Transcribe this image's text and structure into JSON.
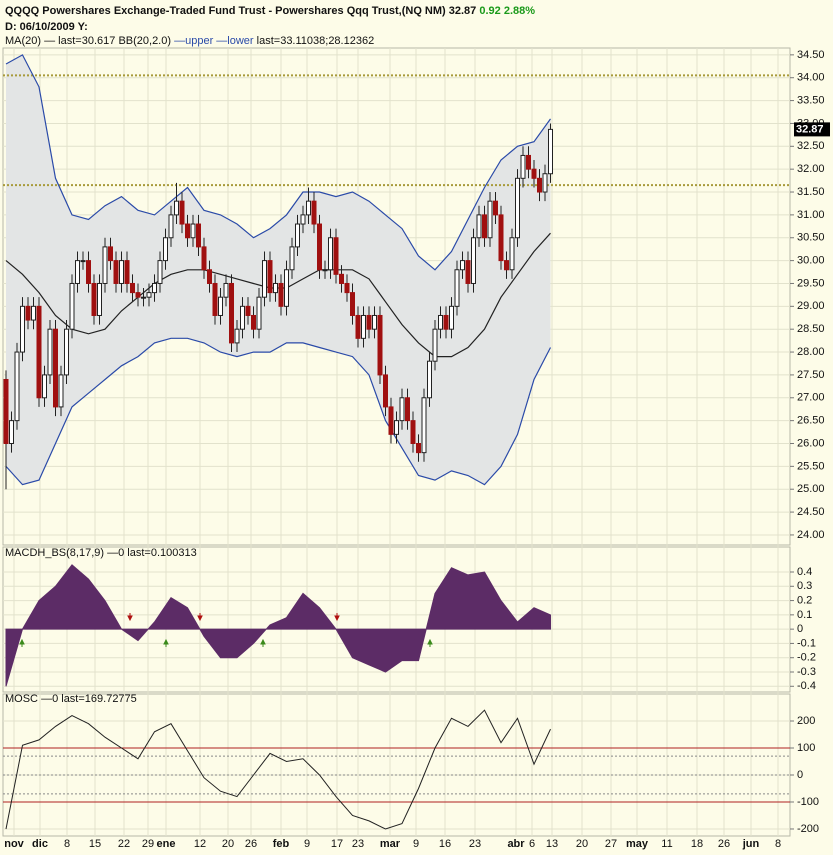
{
  "header": {
    "title": "QQQQ Powershares Exchange-Traded Fund Trust - Powershares Qqq Trust,(NQ NM)",
    "last": "32.87",
    "change": "0.92",
    "change_pct": "2.88%",
    "date_line": "D: 06/10/2009 Y:"
  },
  "x_axis": {
    "labels": [
      "nov",
      "dic",
      "8",
      "15",
      "22",
      "29",
      "ene",
      "12",
      "20",
      "26",
      "feb",
      "9",
      "17",
      "23",
      "mar",
      "9",
      "16",
      "23",
      "abr",
      "6",
      "13",
      "20",
      "27",
      "may",
      "11",
      "18",
      "26",
      "jun",
      "8"
    ]
  },
  "chart_data": [
    {
      "type": "candlestick",
      "legend": [
        "MA(20)",
        "— last=30.617",
        "BB(20,2.0)",
        "—upper",
        "—lower",
        "last=33.11038;28.12362"
      ],
      "ylim": [
        23.78,
        34.65
      ],
      "yticks": [
        {
          "value": 24,
          "label": "24.00"
        },
        {
          "value": 24.5,
          "label": "24.50"
        },
        {
          "value": 25,
          "label": "25.00"
        },
        {
          "value": 25.5,
          "label": "25.50"
        },
        {
          "value": 26,
          "label": "26.00"
        },
        {
          "value": 26.5,
          "label": "26.50"
        },
        {
          "value": 27,
          "label": "27.00"
        },
        {
          "value": 27.5,
          "label": "27.50"
        },
        {
          "value": 28,
          "label": "28.00"
        },
        {
          "value": 28.5,
          "label": "28.50"
        },
        {
          "value": 29,
          "label": "29.00"
        },
        {
          "value": 29.5,
          "label": "29.50"
        },
        {
          "value": 30,
          "label": "30.00"
        },
        {
          "value": 30.5,
          "label": "30.50"
        },
        {
          "value": 31,
          "label": "31.00"
        },
        {
          "value": 31.5,
          "label": "31.50"
        },
        {
          "value": 32,
          "label": "32.00"
        },
        {
          "value": 32.5,
          "label": "32.50"
        },
        {
          "value": 33,
          "label": "33.00"
        },
        {
          "value": 33.5,
          "label": "33.50"
        },
        {
          "value": 34,
          "label": "34.00"
        },
        {
          "value": 34.5,
          "label": "34.50"
        }
      ],
      "up_color": "#ffffff",
      "down_color": "#a01010",
      "open": [
        27.4,
        26.0,
        26.5,
        28.0,
        29.0,
        28.7,
        29.0,
        27.0,
        27.5,
        28.5,
        26.8,
        27.5,
        28.5,
        29.5,
        30.0,
        30.0,
        29.5,
        28.8,
        29.5,
        30.3,
        30.0,
        29.5,
        30.0,
        29.5,
        29.3,
        29.2,
        29.2,
        29.3,
        29.5,
        30.0,
        30.5,
        31.0,
        31.3,
        30.8,
        30.5,
        30.8,
        30.3,
        29.8,
        29.5,
        28.8,
        29.2,
        29.5,
        28.2,
        28.5,
        29.0,
        28.8,
        28.5,
        29.2,
        30.0,
        29.3,
        29.5,
        29.0,
        29.8,
        30.3,
        30.8,
        31.0,
        31.3,
        30.8,
        29.8,
        29.8,
        30.5,
        29.7,
        29.5,
        29.3,
        28.8,
        28.3,
        28.8,
        28.5,
        28.8,
        27.5,
        26.8,
        26.2,
        26.5,
        27.0,
        26.5,
        26.0,
        25.8,
        27.0,
        27.8,
        28.5,
        28.8,
        28.5,
        29.0,
        29.8,
        30.0,
        29.5,
        30.5,
        31.0,
        30.5,
        31.3,
        31.0,
        30.0,
        29.8,
        30.5,
        31.8,
        32.3,
        32.0,
        31.8,
        31.5,
        31.9
      ],
      "high": [
        27.6,
        26.7,
        28.2,
        29.2,
        29.2,
        29.2,
        29.2,
        27.7,
        28.7,
        28.7,
        27.7,
        28.7,
        29.7,
        30.2,
        30.2,
        30.2,
        29.7,
        29.7,
        30.5,
        30.5,
        30.2,
        30.2,
        30.2,
        29.7,
        29.5,
        29.4,
        29.5,
        29.7,
        30.2,
        30.7,
        31.2,
        31.7,
        31.5,
        31.0,
        31.0,
        31.0,
        30.5,
        30.0,
        29.7,
        29.4,
        29.7,
        29.7,
        28.7,
        29.2,
        29.2,
        29.0,
        29.4,
        30.2,
        30.2,
        29.7,
        29.7,
        30.0,
        30.5,
        31.0,
        31.2,
        31.6,
        31.5,
        31.0,
        30.0,
        30.7,
        30.7,
        29.9,
        29.7,
        29.5,
        29.0,
        29.0,
        29.0,
        29.0,
        29.0,
        27.7,
        27.0,
        26.7,
        27.2,
        27.2,
        26.7,
        26.2,
        27.2,
        28.0,
        28.7,
        29.0,
        29.0,
        29.2,
        30.0,
        30.2,
        30.2,
        30.7,
        31.2,
        31.2,
        31.5,
        31.5,
        31.2,
        30.2,
        30.7,
        32.0,
        32.5,
        32.5,
        32.2,
        32.0,
        32.1,
        33.0
      ],
      "low": [
        25.0,
        25.8,
        26.3,
        27.8,
        28.5,
        28.5,
        26.8,
        26.8,
        27.3,
        26.6,
        26.6,
        27.3,
        28.3,
        29.3,
        29.8,
        29.3,
        28.6,
        28.6,
        29.3,
        29.8,
        29.3,
        29.3,
        29.3,
        29.1,
        29.0,
        29.0,
        29.0,
        29.1,
        29.3,
        29.8,
        30.3,
        30.8,
        30.6,
        30.3,
        30.3,
        30.1,
        29.6,
        29.3,
        28.6,
        28.6,
        29.0,
        28.0,
        28.0,
        28.3,
        28.6,
        28.3,
        28.3,
        29.0,
        29.1,
        29.1,
        28.8,
        28.8,
        29.6,
        30.1,
        30.6,
        30.8,
        30.6,
        29.6,
        29.6,
        29.6,
        29.5,
        29.3,
        29.1,
        28.6,
        28.1,
        28.1,
        28.3,
        28.3,
        27.3,
        26.6,
        26.0,
        26.0,
        26.3,
        26.3,
        25.8,
        25.6,
        25.6,
        26.8,
        27.6,
        28.3,
        28.3,
        28.3,
        28.8,
        29.6,
        29.3,
        29.3,
        30.3,
        30.3,
        30.3,
        30.8,
        29.8,
        29.6,
        29.6,
        30.3,
        31.6,
        31.8,
        31.6,
        31.3,
        31.3,
        31.7
      ],
      "close": [
        26.0,
        26.5,
        28.0,
        29.0,
        28.7,
        29.0,
        27.0,
        27.5,
        28.5,
        26.8,
        27.5,
        28.5,
        29.5,
        30.0,
        30.0,
        29.5,
        28.8,
        29.5,
        30.3,
        30.0,
        29.5,
        30.0,
        29.5,
        29.3,
        29.2,
        29.2,
        29.3,
        29.5,
        30.0,
        30.5,
        31.0,
        31.3,
        30.8,
        30.5,
        30.8,
        30.3,
        29.8,
        29.5,
        28.8,
        29.2,
        29.5,
        28.2,
        28.5,
        29.0,
        28.8,
        28.5,
        29.2,
        30.0,
        29.3,
        29.5,
        29.0,
        29.8,
        30.3,
        30.8,
        31.0,
        31.3,
        30.8,
        29.8,
        29.8,
        30.5,
        29.7,
        29.5,
        29.3,
        28.8,
        28.3,
        28.8,
        28.5,
        28.8,
        27.5,
        26.8,
        26.2,
        26.5,
        27.0,
        26.5,
        26.0,
        25.8,
        27.0,
        27.8,
        28.5,
        28.8,
        28.5,
        29.0,
        29.8,
        30.0,
        29.5,
        30.5,
        31.0,
        30.5,
        31.3,
        31.0,
        30.0,
        29.8,
        30.5,
        31.8,
        32.3,
        32.0,
        31.8,
        31.5,
        31.9,
        32.87
      ],
      "overlays": [
        {
          "name": "upper",
          "color": "#2a4aa8",
          "values": [
            34.3,
            34.5,
            33.8,
            31.8,
            31.0,
            30.9,
            31.2,
            31.4,
            31.1,
            31.0,
            31.3,
            31.6,
            31.1,
            31.0,
            30.8,
            30.5,
            30.7,
            31.0,
            31.5,
            31.5,
            31.4,
            31.5,
            31.3,
            31.0,
            30.7,
            30.1,
            29.8,
            30.2,
            30.9,
            31.6,
            32.2,
            32.5,
            32.6,
            33.1
          ]
        },
        {
          "name": "lower",
          "color": "#2a4aa8",
          "values": [
            25.5,
            25.1,
            25.2,
            26.0,
            26.8,
            27.1,
            27.4,
            27.7,
            27.9,
            28.2,
            28.3,
            28.3,
            28.2,
            28.0,
            27.9,
            28.0,
            28.0,
            28.2,
            28.2,
            28.1,
            28.0,
            27.9,
            27.5,
            26.5,
            25.9,
            25.3,
            25.2,
            25.4,
            25.3,
            25.1,
            25.5,
            26.2,
            27.4,
            28.1
          ]
        },
        {
          "name": "MA(20)",
          "color": "#222222",
          "values": [
            30.0,
            29.7,
            29.3,
            28.8,
            28.5,
            28.4,
            28.5,
            28.9,
            29.2,
            29.5,
            29.7,
            29.8,
            29.8,
            29.7,
            29.6,
            29.5,
            29.4,
            29.4,
            29.6,
            29.8,
            29.8,
            29.8,
            29.6,
            29.1,
            28.6,
            28.2,
            27.9,
            27.9,
            28.1,
            28.5,
            29.2,
            29.7,
            30.2,
            30.6
          ]
        }
      ],
      "band_fill": "#e3e5e5",
      "levels": [
        34.05,
        31.65
      ]
    },
    {
      "type": "area",
      "legend": [
        "MACDH_BS(8,17,9)",
        "—0",
        "last=0.100313"
      ],
      "color": "#5c2c66",
      "ylim": [
        -0.44,
        0.575
      ],
      "yticks": [
        -0.4,
        -0.3,
        -0.2,
        -0.1,
        0,
        0.1,
        0.2,
        0.3,
        0.4
      ],
      "values": [
        -0.4,
        0.0,
        0.2,
        0.3,
        0.45,
        0.35,
        0.2,
        0.0,
        -0.08,
        0.05,
        0.22,
        0.15,
        -0.05,
        -0.2,
        -0.2,
        -0.1,
        0.03,
        0.08,
        0.25,
        0.15,
        0.0,
        -0.2,
        -0.25,
        -0.3,
        -0.22,
        -0.22,
        0.25,
        0.43,
        0.38,
        0.4,
        0.2,
        0.05,
        0.15,
        0.1
      ]
    },
    {
      "type": "line",
      "legend": [
        "MOSC",
        "—0",
        "last=169.72775"
      ],
      "color": "#222222",
      "ylim": [
        -226,
        300
      ],
      "yticks": [
        -200,
        -100,
        0,
        100,
        200
      ],
      "levels": [
        100,
        -100
      ],
      "dotted_levels": [
        70,
        0,
        -70
      ],
      "values": [
        -200,
        110,
        130,
        180,
        220,
        190,
        140,
        100,
        60,
        160,
        190,
        90,
        -10,
        -60,
        -80,
        0,
        80,
        50,
        60,
        0,
        -80,
        -150,
        -170,
        -200,
        -180,
        -50,
        100,
        210,
        180,
        240,
        120,
        210,
        40,
        170
      ]
    }
  ]
}
